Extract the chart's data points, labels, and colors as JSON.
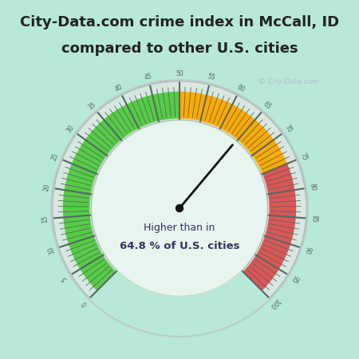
{
  "title_line1": "City-Data.com crime index in McCall, ID",
  "title_line2": "compared to other U.S. cities",
  "title_color": "#222222",
  "title_fontsize": 13,
  "bg_color_top": "#00dddd",
  "bg_color_body": "#c8eede",
  "fig_bg": "#aaddcc",
  "value": 64.8,
  "label_line1": "Higher than in",
  "label_line2": "64.8 % of U.S. cities",
  "label_color": "#333366",
  "green_color": "#55cc44",
  "orange_color": "#ffaa00",
  "red_color": "#dd5555",
  "tick_color": "#556666",
  "needle_color": "#111111",
  "watermark": "© City-Data.com"
}
